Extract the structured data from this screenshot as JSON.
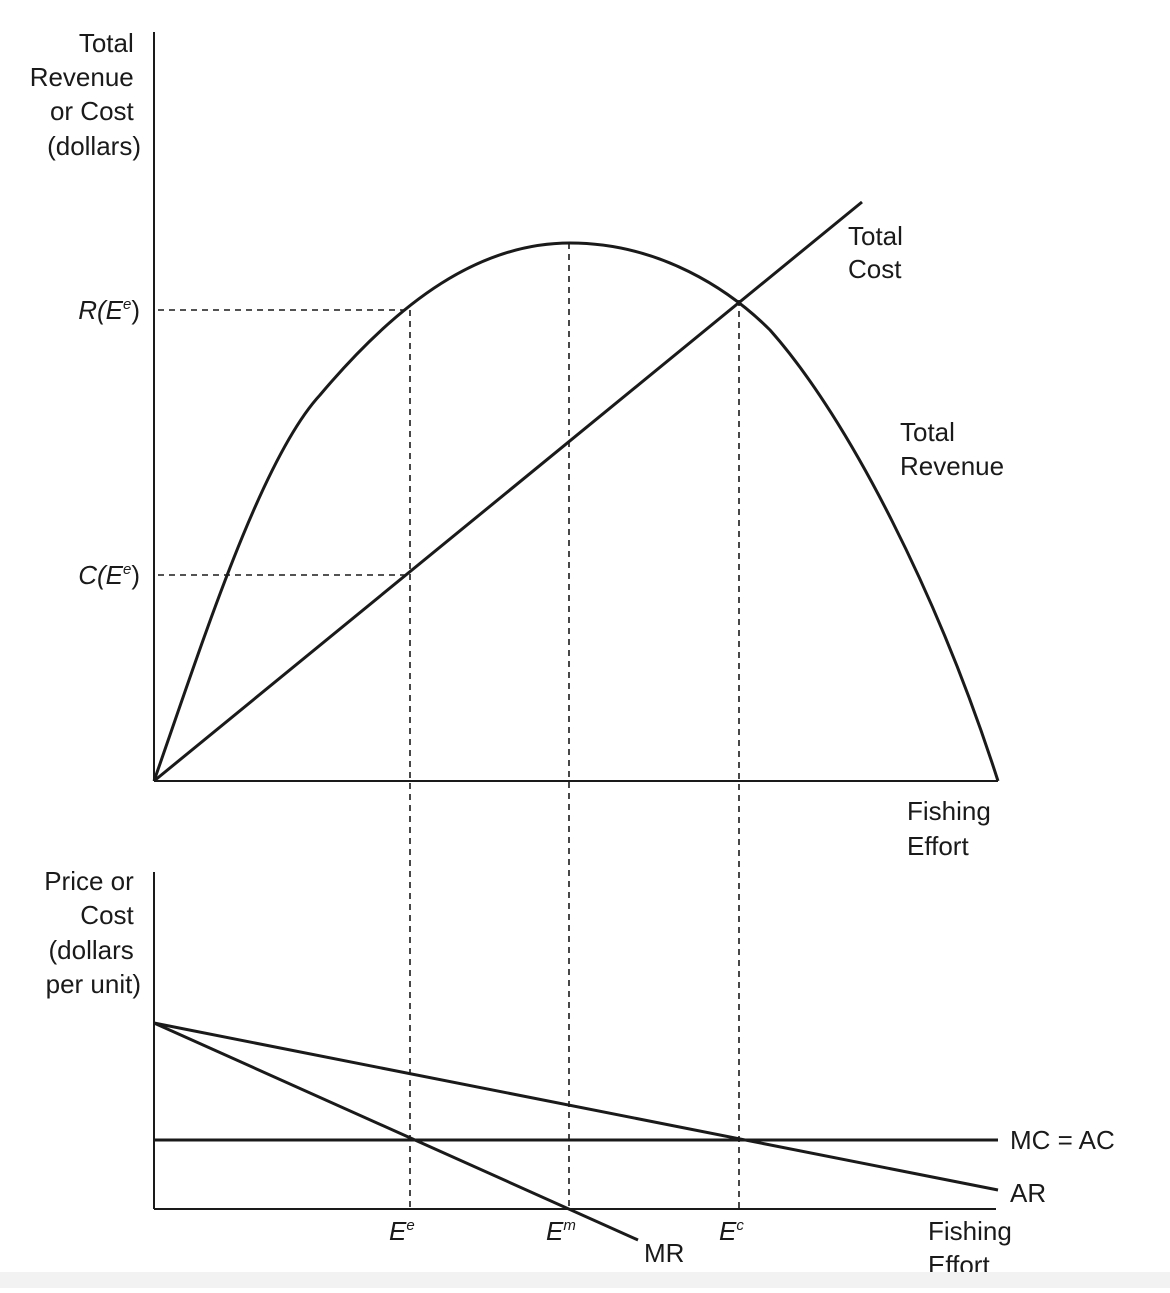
{
  "top_panel": {
    "y_axis_label": [
      "Total",
      "Revenue",
      "or Cost",
      "(dollars)"
    ],
    "x_axis_label": [
      "Fishing",
      "Effort"
    ],
    "tick_r": {
      "prefix": "R(",
      "var": "E",
      "sup": "e",
      "suffix": ")"
    },
    "tick_c": {
      "prefix": "C(",
      "var": "E",
      "sup": "e",
      "suffix": ")"
    },
    "total_cost_label": [
      "Total",
      "Cost"
    ],
    "total_revenue_label": [
      "Total",
      "Revenue"
    ]
  },
  "bottom_panel": {
    "y_axis_label": [
      "Price or",
      "Cost",
      "(dollars",
      "per unit)"
    ],
    "x_axis_label": [
      "Fishing",
      "Effort"
    ],
    "mc_ac_label": "MC = AC",
    "ar_label": "AR",
    "mr_label": "MR",
    "effort_ticks": [
      {
        "var": "E",
        "sup": "e"
      },
      {
        "var": "E",
        "sup": "m"
      },
      {
        "var": "E",
        "sup": "c"
      }
    ]
  }
}
